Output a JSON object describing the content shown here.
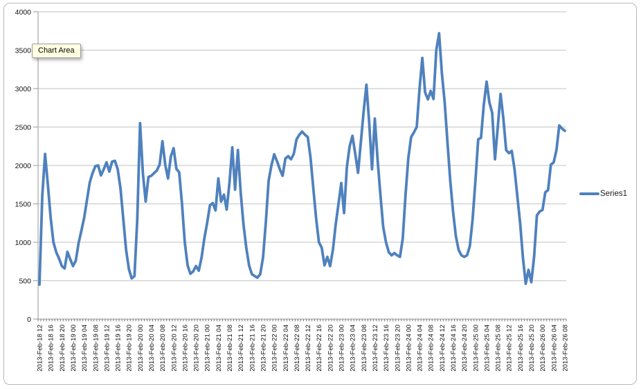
{
  "tooltip": {
    "text": "Chart Area"
  },
  "colors": {
    "series_line": "#4f81bd",
    "gridline": "#cdcdcd",
    "axis_line": "#a6a6a6",
    "tick": "#777777",
    "label_text": "#111111",
    "frame_border": "#b8b8b8",
    "tooltip_bg": "#ffffe1",
    "background": "#ffffff"
  },
  "chart_data": {
    "type": "line",
    "title": "",
    "xlabel": "",
    "ylabel": "",
    "ylim": [
      0,
      4000
    ],
    "ytick_step": 500,
    "y_tick_labels": [
      "0",
      "500",
      "1000",
      "1500",
      "2000",
      "2500",
      "3000",
      "3500",
      "4000"
    ],
    "grid": "horizontal",
    "legend_position": "right",
    "x_points_per_label": 4,
    "x_tick_labels": [
      "2013-Feb-18 12",
      "2013-Feb-18 16",
      "2013-Feb-18 20",
      "2013-Feb-19 00",
      "2013-Feb-19 04",
      "2013-Feb-19 08",
      "2013-Feb-19 12",
      "2013-Feb-19 16",
      "2013-Feb-19 20",
      "2013-Feb-20 00",
      "2013-Feb-20 04",
      "2013-Feb-20 08",
      "2013-Feb-20 12",
      "2013-Feb-20 16",
      "2013-Feb-20 20",
      "2013-Feb-21 00",
      "2013-Feb-21 04",
      "2013-Feb-21 08",
      "2013-Feb-21 12",
      "2013-Feb-21 16",
      "2013-Feb-21 20",
      "2013-Feb-22 00",
      "2013-Feb-22 04",
      "2013-Feb-22 08",
      "2013-Feb-22 12",
      "2013-Feb-22 16",
      "2013-Feb-22 20",
      "2013-Feb-23 00",
      "2013-Feb-23 04",
      "2013-Feb-23 08",
      "2013-Feb-23 12",
      "2013-Feb-23 16",
      "2013-Feb-23 20",
      "2013-Feb-24 00",
      "2013-Feb-24 04",
      "2013-Feb-24 08",
      "2013-Feb-24 12",
      "2013-Feb-24 16",
      "2013-Feb-24 20",
      "2013-Feb-25 00",
      "2013-Feb-25 04",
      "2013-Feb-25 08",
      "2013-Feb-25 12",
      "2013-Feb-25 16",
      "2013-Feb-25 20",
      "2013-Feb-26 00",
      "2013-Feb-26 04",
      "2013-Feb-26 08"
    ],
    "series": [
      {
        "name": "Series1",
        "color": "#4f81bd",
        "interval": "hourly",
        "values": [
          450,
          1600,
          2150,
          1750,
          1320,
          1000,
          870,
          790,
          690,
          660,
          875,
          780,
          690,
          760,
          990,
          1150,
          1320,
          1550,
          1780,
          1900,
          1990,
          2000,
          1870,
          1950,
          2040,
          1920,
          2050,
          2060,
          1950,
          1700,
          1300,
          900,
          650,
          530,
          560,
          1300,
          2550,
          1900,
          1530,
          1850,
          1865,
          1900,
          1935,
          2010,
          2315,
          2010,
          1830,
          2115,
          2225,
          1955,
          1910,
          1500,
          1000,
          700,
          590,
          620,
          690,
          630,
          800,
          1050,
          1250,
          1480,
          1510,
          1415,
          1830,
          1530,
          1620,
          1425,
          1780,
          2235,
          1685,
          2200,
          1650,
          1235,
          930,
          700,
          585,
          560,
          540,
          585,
          800,
          1260,
          1800,
          2000,
          2145,
          2055,
          1950,
          1865,
          2090,
          2120,
          2080,
          2150,
          2340,
          2400,
          2440,
          2400,
          2370,
          2100,
          1700,
          1310,
          1000,
          930,
          700,
          810,
          690,
          900,
          1230,
          1500,
          1770,
          1380,
          1980,
          2250,
          2385,
          2150,
          1905,
          2300,
          2700,
          3050,
          2550,
          1950,
          2610,
          2070,
          1620,
          1200,
          1000,
          870,
          830,
          860,
          830,
          810,
          1050,
          1620,
          2100,
          2370,
          2430,
          2500,
          2995,
          3400,
          2950,
          2860,
          2970,
          2865,
          3500,
          3720,
          3200,
          2820,
          2300,
          1800,
          1400,
          1080,
          900,
          830,
          810,
          830,
          950,
          1300,
          1800,
          2340,
          2360,
          2790,
          3090,
          2820,
          2685,
          2080,
          2500,
          2930,
          2610,
          2200,
          2160,
          2190,
          1950,
          1600,
          1250,
          800,
          460,
          640,
          480,
          810,
          1350,
          1400,
          1420,
          1650,
          1680,
          2010,
          2040,
          2200,
          2520,
          2480,
          2450
        ]
      }
    ]
  }
}
